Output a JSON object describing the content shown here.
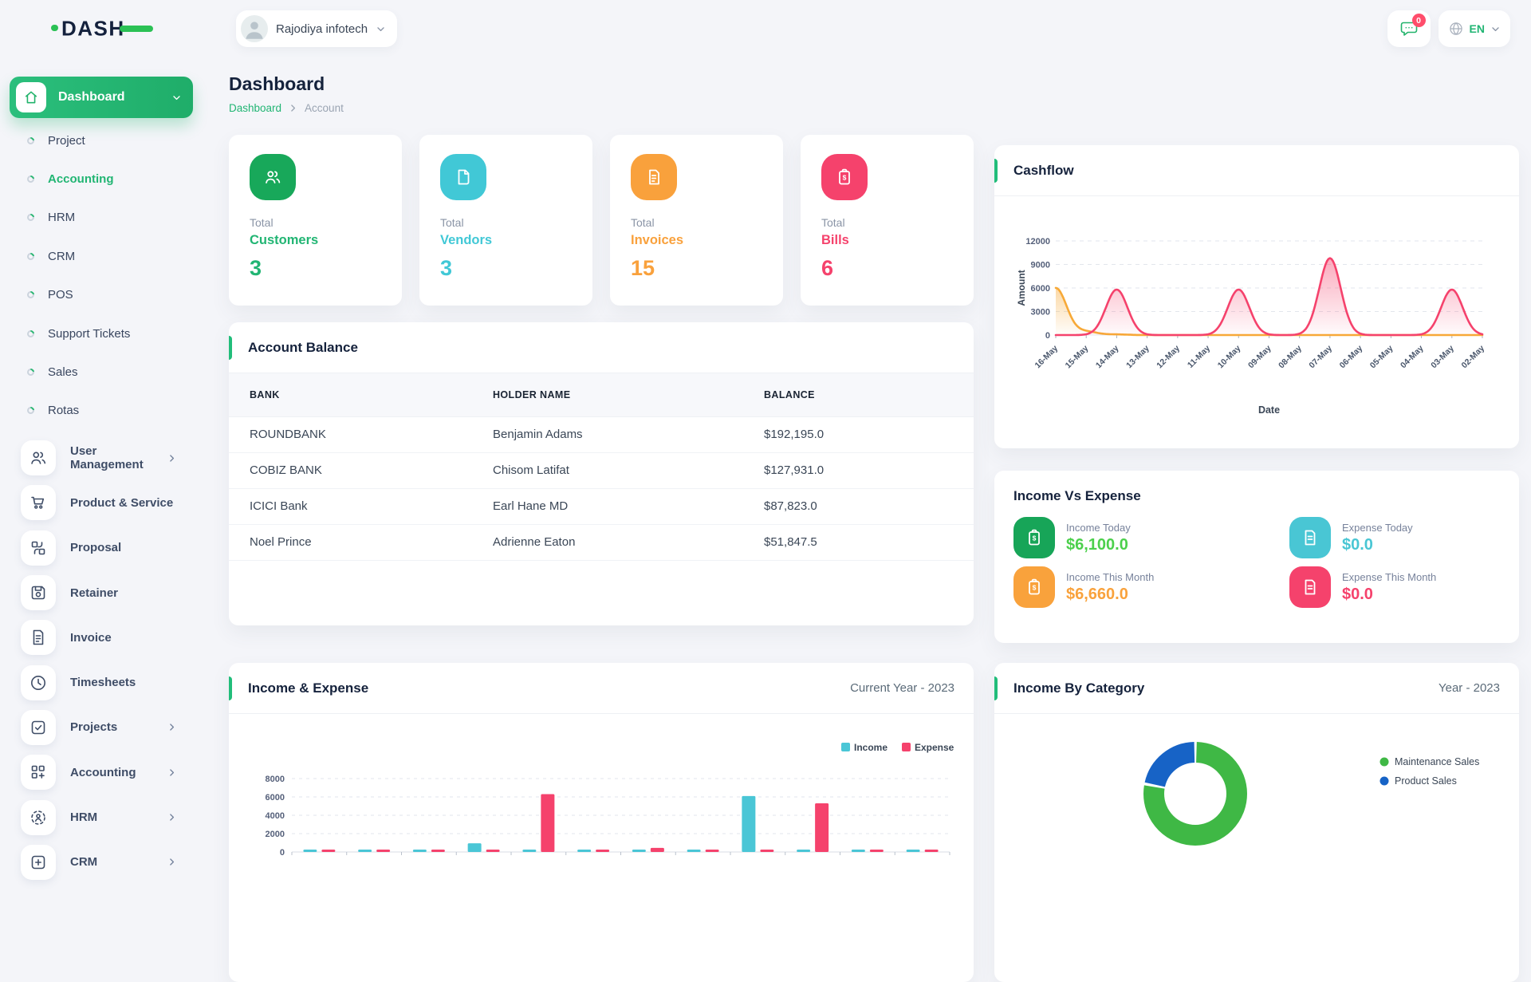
{
  "app": {
    "logo_text": "DASH"
  },
  "topbar": {
    "company": "Rajodiya infotech",
    "notification_badge": "0",
    "language": "EN"
  },
  "page": {
    "title": "Dashboard",
    "breadcrumb": [
      "Dashboard",
      "Account"
    ]
  },
  "sidebar": {
    "active_label": "Dashboard",
    "children": [
      {
        "label": "Project",
        "active": false
      },
      {
        "label": "Accounting",
        "active": true
      },
      {
        "label": "HRM",
        "active": false
      },
      {
        "label": "CRM",
        "active": false
      },
      {
        "label": "POS",
        "active": false
      },
      {
        "label": "Support Tickets",
        "active": false
      },
      {
        "label": "Sales",
        "active": false
      },
      {
        "label": "Rotas",
        "active": false
      }
    ],
    "modules": [
      {
        "label": "User Management",
        "icon": "users-icon",
        "chevron": true
      },
      {
        "label": "Product & Service",
        "icon": "cart-icon",
        "chevron": false
      },
      {
        "label": "Proposal",
        "icon": "proposal-icon",
        "chevron": false
      },
      {
        "label": "Retainer",
        "icon": "retainer-icon",
        "chevron": false
      },
      {
        "label": "Invoice",
        "icon": "invoice-icon",
        "chevron": false
      },
      {
        "label": "Timesheets",
        "icon": "clock-icon",
        "chevron": false
      },
      {
        "label": "Projects",
        "icon": "projects-check-icon",
        "chevron": true
      },
      {
        "label": "Accounting",
        "icon": "accounting-grid-icon",
        "chevron": true
      },
      {
        "label": "HRM",
        "icon": "hrm-icon",
        "chevron": true
      },
      {
        "label": "CRM",
        "icon": "crm-icon",
        "chevron": true
      }
    ]
  },
  "stats": [
    {
      "label_top": "Total",
      "label": "Customers",
      "value": "3",
      "icon": "customers-icon",
      "icon_bg": "#18A85A",
      "text_color": "#21B573"
    },
    {
      "label_top": "Total",
      "label": "Vendors",
      "value": "3",
      "icon": "vendors-icon",
      "icon_bg": "#41C8D6",
      "text_color": "#41C8D6"
    },
    {
      "label_top": "Total",
      "label": "Invoices",
      "value": "15",
      "icon": "invoices-icon",
      "icon_bg": "#F9A13C",
      "text_color": "#F9A13C"
    },
    {
      "label_top": "Total",
      "label": "Bills",
      "value": "6",
      "icon": "bills-icon",
      "icon_bg": "#F5426C",
      "text_color": "#F5426C"
    }
  ],
  "account_balance": {
    "title": "Account Balance",
    "columns": [
      "BANK",
      "HOLDER NAME",
      "BALANCE"
    ],
    "rows": [
      [
        "ROUNDBANK",
        "Benjamin Adams",
        "$192,195.0"
      ],
      [
        "COBIZ BANK",
        "Chisom Latifat",
        "$127,931.0"
      ],
      [
        "ICICI Bank",
        "Earl Hane MD",
        "$87,823.0"
      ],
      [
        "Noel Prince",
        "Adrienne Eaton",
        "$51,847.5"
      ]
    ]
  },
  "income_vs_expense": {
    "title": "Income Vs Expense",
    "tiles": [
      {
        "label": "Income Today",
        "value": "$6,100.0",
        "icon": "clipboard-dollar-icon",
        "icon_bg": "#17A558",
        "value_color": "#4CD04C"
      },
      {
        "label": "Expense Today",
        "value": "$0.0",
        "icon": "file-icon",
        "icon_bg": "#49C6D4",
        "value_color": "#49C6D4"
      },
      {
        "label": "Income This Month",
        "value": "$6,660.0",
        "icon": "clipboard-dollar-icon",
        "icon_bg": "#F9A23C",
        "value_color": "#F9A23C"
      },
      {
        "label": "Expense This Month",
        "value": "$0.0",
        "icon": "file-icon",
        "icon_bg": "#F5426C",
        "value_color": "#F5426C"
      }
    ]
  },
  "chart_data": [
    {
      "id": "cashflow",
      "type": "area",
      "title": "Cashflow",
      "xlabel": "Date",
      "ylabel": "Amount",
      "ylim": [
        0,
        12000
      ],
      "yticks": [
        0,
        3000,
        6000,
        9000,
        12000
      ],
      "grid": "dashed-horizontal",
      "categories": [
        "16-May",
        "15-May",
        "14-May",
        "13-May",
        "12-May",
        "11-May",
        "10-May",
        "09-May",
        "08-May",
        "07-May",
        "06-May",
        "05-May",
        "04-May",
        "03-May",
        "02-May"
      ],
      "series": [
        {
          "name": "series-orange",
          "color": "#F7A937",
          "values": [
            6000,
            450,
            80,
            0,
            0,
            0,
            0,
            0,
            0,
            0,
            0,
            0,
            0,
            0,
            0
          ]
        },
        {
          "name": "series-pink",
          "color": "#F5426C",
          "values": [
            0,
            0,
            5800,
            0,
            0,
            0,
            5800,
            0,
            0,
            9800,
            0,
            0,
            0,
            5800,
            0
          ]
        }
      ]
    },
    {
      "id": "income-expense",
      "type": "bar",
      "title": "Income & Expense",
      "period": "Current Year - 2023",
      "ylim": [
        0,
        8000
      ],
      "yticks": [
        0,
        2000,
        4000,
        6000,
        8000
      ],
      "grid": "dashed-horizontal",
      "legend": [
        "Income",
        "Expense"
      ],
      "legend_position": "top-right",
      "x_labels_visible": false,
      "groups": 12,
      "series": [
        {
          "name": "Income",
          "color": "#4AC6D6",
          "values": [
            200,
            120,
            120,
            950,
            120,
            120,
            180,
            120,
            6100,
            120,
            120,
            120
          ]
        },
        {
          "name": "Expense",
          "color": "#F5426C",
          "values": [
            120,
            120,
            120,
            120,
            6300,
            120,
            450,
            120,
            120,
            5300,
            120,
            120
          ]
        }
      ]
    },
    {
      "id": "income-by-category",
      "type": "donut",
      "title": "Income By Category",
      "period": "Year - 2023",
      "legend_position": "right",
      "slices": [
        {
          "label": "Maintenance Sales",
          "color": "#3FB845",
          "pct": 78
        },
        {
          "label": "Product Sales",
          "color": "#1763C6",
          "pct": 22
        }
      ]
    }
  ]
}
